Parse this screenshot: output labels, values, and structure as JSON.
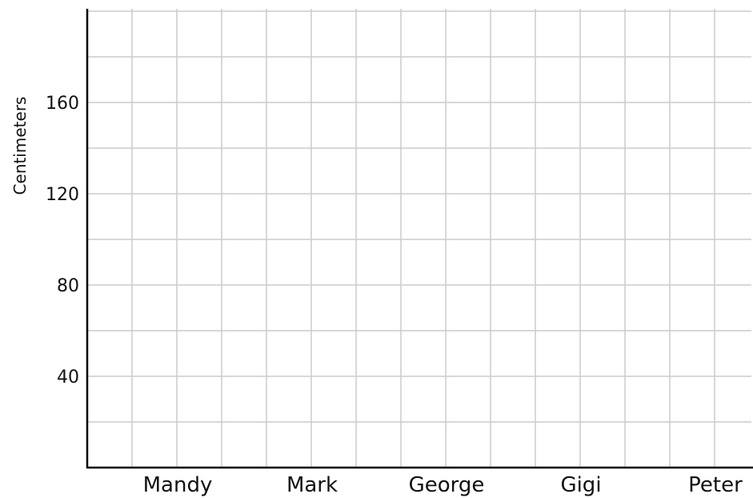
{
  "chart_data": {
    "type": "bar",
    "title": "",
    "xlabel": "",
    "ylabel": "Centimeters",
    "categories": [
      "Mandy",
      "Mark",
      "George",
      "Gigi",
      "Peter"
    ],
    "values": [
      null,
      null,
      null,
      null,
      null
    ],
    "ylim": [
      0,
      200
    ],
    "yticks": [
      40,
      80,
      120,
      160
    ],
    "minor_step": 20,
    "grid": true,
    "legend": "none",
    "colors": {
      "axis": "#000000",
      "grid": "#cccccc",
      "text": "#111111",
      "background": "#ffffff"
    }
  }
}
